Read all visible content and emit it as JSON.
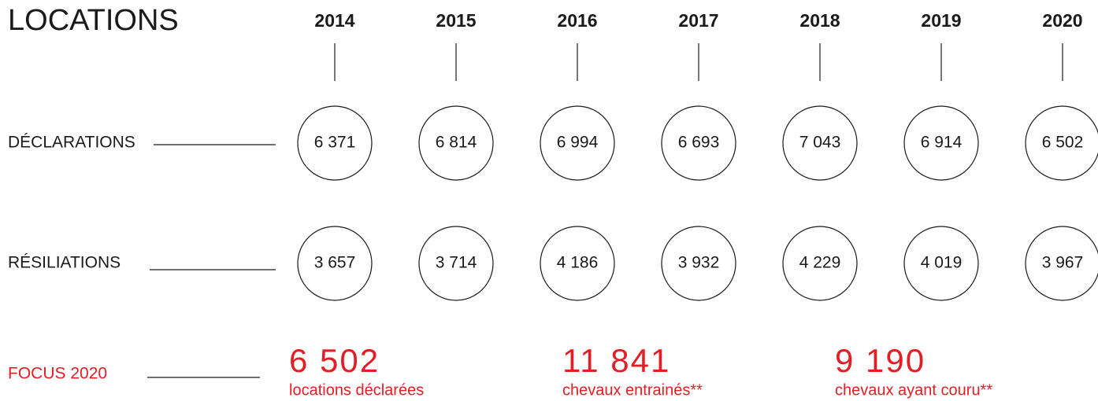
{
  "title": "LOCATIONS",
  "years": [
    "2014",
    "2015",
    "2016",
    "2017",
    "2018",
    "2019",
    "2020"
  ],
  "rows": [
    {
      "label": "DÉCLARATIONS",
      "values": [
        "6 371",
        "6 814",
        "6 994",
        "6 693",
        "7 043",
        "6 914",
        "6 502"
      ]
    },
    {
      "label": "RÉSILIATIONS",
      "values": [
        "3 657",
        "3 714",
        "4 186",
        "3 932",
        "4 229",
        "4 019",
        "3 967"
      ]
    }
  ],
  "focus": {
    "label": "FOCUS 2020",
    "items": [
      {
        "value": "6 502",
        "caption": "locations déclarées"
      },
      {
        "value": "11 841",
        "caption": "chevaux entrainés**"
      },
      {
        "value": "9 190",
        "caption": "chevaux ayant couru**"
      }
    ]
  }
}
